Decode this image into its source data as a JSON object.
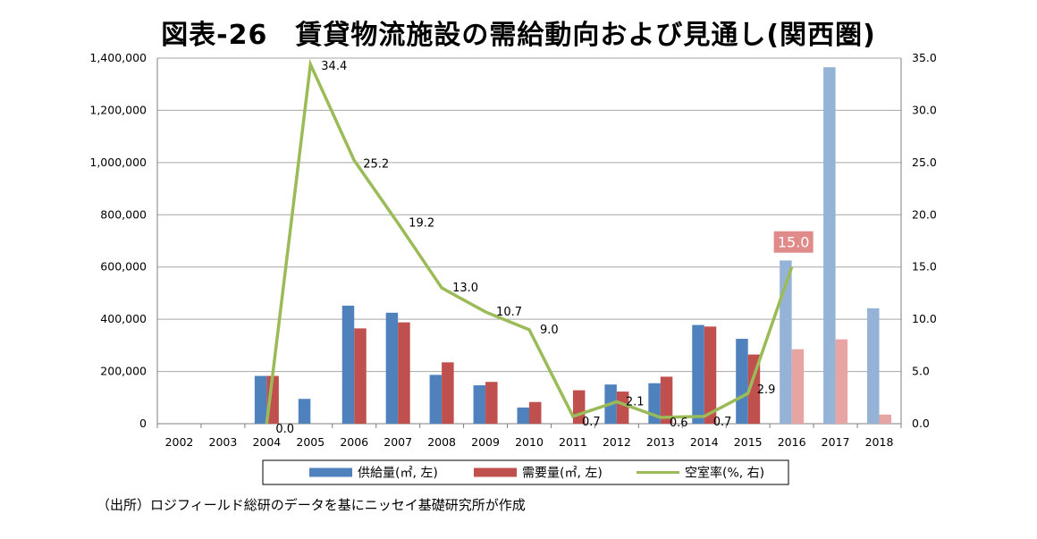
{
  "title": "図表-26　賃貸物流施設の需給動向および見通し(関西圏)",
  "source": "（出所）ロジフィールド総研のデータを基にニッセイ基礎研究所が作成",
  "colors": {
    "supply": "#4f81bd",
    "demand": "#c0504d",
    "supply_forecast": "#95b3d7",
    "demand_forecast": "#e6a4a2",
    "vacancy": "#9bbb59",
    "highlight_label_bg": "#e08a8a",
    "grid": "#a6a6a6"
  },
  "chart_data": {
    "type": "bar",
    "categories": [
      "2002",
      "2003",
      "2004",
      "2005",
      "2006",
      "2007",
      "2008",
      "2009",
      "2010",
      "2011",
      "2012",
      "2013",
      "2014",
      "2015",
      "2016",
      "2017",
      "2018"
    ],
    "forecast_from": "2016",
    "series": [
      {
        "name": "供給量(㎡, 左)",
        "type": "bar",
        "axis": "left",
        "values": [
          0,
          0,
          183000,
          95000,
          452000,
          425000,
          187000,
          147000,
          62000,
          0,
          150000,
          155000,
          378000,
          325000,
          625000,
          1365000,
          442000
        ]
      },
      {
        "name": "需要量(㎡, 左)",
        "type": "bar",
        "axis": "left",
        "values": [
          0,
          0,
          183000,
          0,
          365000,
          388000,
          235000,
          160000,
          83000,
          128000,
          123000,
          180000,
          372000,
          265000,
          285000,
          323000,
          35000
        ]
      },
      {
        "name": "空室率(%, 右)",
        "type": "line",
        "axis": "right",
        "values": [
          null,
          null,
          0.0,
          34.4,
          25.2,
          19.2,
          13.0,
          10.7,
          9.0,
          0.7,
          2.1,
          0.6,
          0.7,
          2.9,
          15.0,
          null,
          null
        ],
        "labels": [
          "",
          "",
          "0.0",
          "34.4",
          "25.2",
          "19.2",
          "13.0",
          "10.7",
          "9.0",
          "0.7",
          "2.1",
          "0.6",
          "0.7",
          "2.9",
          "15.0",
          "",
          ""
        ]
      }
    ],
    "y_left": {
      "min": 0,
      "max": 1400000,
      "ticks": [
        "0",
        "200,000",
        "400,000",
        "600,000",
        "800,000",
        "1,000,000",
        "1,200,000",
        "1,400,000"
      ]
    },
    "y_right": {
      "min": 0,
      "max": 35,
      "ticks": [
        "0.0",
        "5.0",
        "10.0",
        "15.0",
        "20.0",
        "25.0",
        "30.0",
        "35.0"
      ]
    },
    "grid": true,
    "legend_position": "bottom"
  }
}
